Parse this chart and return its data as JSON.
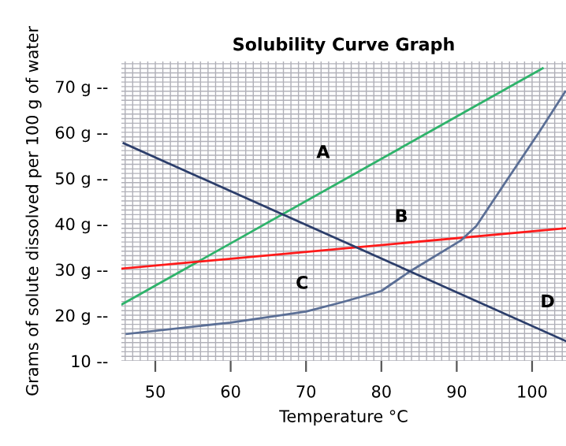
{
  "chart_data": {
    "type": "line",
    "title": "Solubility Curve Graph",
    "xlabel": "Temperature °C",
    "ylabel": "Grams of solute dissolved per 100 g of water",
    "xlim": [
      45.5,
      104.5
    ],
    "ylim": [
      10,
      75.5
    ],
    "xticks": [
      50,
      60,
      70,
      80,
      90,
      100
    ],
    "yticks": [
      {
        "value": 10,
        "label": "10 --"
      },
      {
        "value": 20,
        "label": "20 g --"
      },
      {
        "value": 30,
        "label": "30 g --"
      },
      {
        "value": 40,
        "label": "40 g --"
      },
      {
        "value": 50,
        "label": "50 g --"
      },
      {
        "value": 60,
        "label": "60 g --"
      },
      {
        "value": 70,
        "label": "70 g --"
      }
    ],
    "grid": true,
    "marker": "none",
    "line_style": "solid",
    "legend": false,
    "series": [
      {
        "name": "A",
        "color": "#2fb36b",
        "x": [
          45.6,
          101.4
        ],
        "values": [
          22.4,
          74.0
        ]
      },
      {
        "name": "B",
        "color": "#ff1a1a",
        "x": [
          45.6,
          104.4
        ],
        "values": [
          30.2,
          39.0
        ]
      },
      {
        "name": "C",
        "color": "#5b6f96",
        "x": [
          46.2,
          60,
          70,
          74.7,
          80,
          83.9,
          90.6,
          92.6,
          96.8,
          101.0,
          104.4
        ],
        "values": [
          15.9,
          18.4,
          20.8,
          22.8,
          25.3,
          29.7,
          36.4,
          39.5,
          49.9,
          60.2,
          68.9
        ]
      },
      {
        "name": "D",
        "color": "#2c3e6b",
        "x": [
          45.8,
          104.4
        ],
        "values": [
          57.6,
          14.4
        ]
      }
    ]
  }
}
